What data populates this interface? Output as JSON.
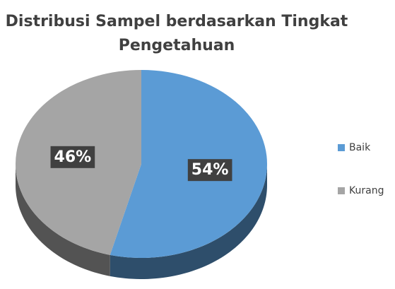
{
  "chart_data": {
    "type": "pie",
    "title": "Distribusi Sampel berdasarkan Tingkat Pengetahuan",
    "categories": [
      "Baik",
      "Kurang"
    ],
    "values": [
      54,
      46
    ],
    "value_labels": [
      "54%",
      "46%"
    ],
    "colors": [
      "#5b9bd5",
      "#a5a5a5"
    ],
    "legend": "right"
  }
}
